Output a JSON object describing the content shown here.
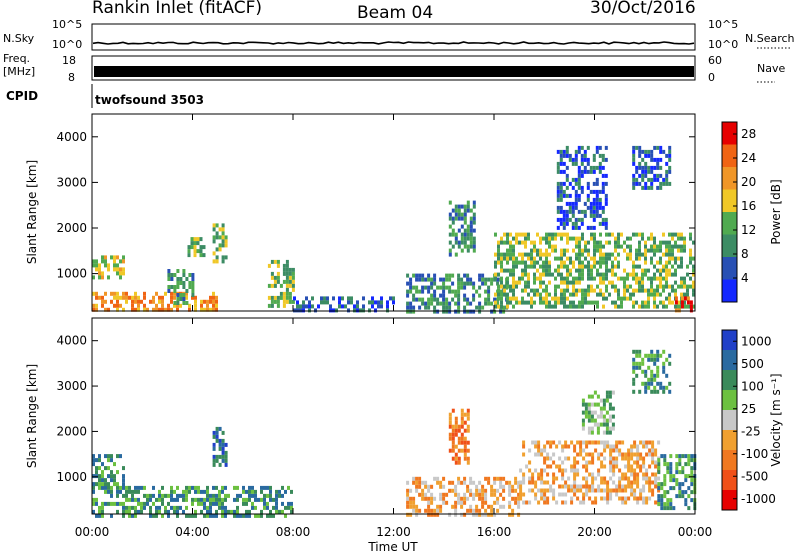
{
  "header": {
    "title": "Rankin Inlet (fitACF)",
    "beam": "Beam 04",
    "date": "30/Oct/2016"
  },
  "aux": {
    "nsky_label": "N.Sky",
    "nsky_ticks": [
      "10^5",
      "10^0"
    ],
    "nsearch_label": "N.Search",
    "freq_label_1": "Freq.",
    "freq_label_2": "[MHz]",
    "freq_ticks": [
      "18",
      "8"
    ],
    "nave_label": "Nave",
    "nave_ticks": [
      "60",
      "0"
    ],
    "cpid_label": "CPID",
    "cpid_value": "twofsound 3503"
  },
  "colors": {
    "power_scale": [
      "#1428ff",
      "#2850b4",
      "#3c8c64",
      "#50aa50",
      "#f0c828",
      "#f09628",
      "#f06414",
      "#e60000"
    ],
    "velocity_scale": [
      "#2040c8",
      "#2a6aa0",
      "#3a8a5a",
      "#6cc040",
      "#c8c8c8",
      "#f0a030",
      "#f07820",
      "#f05018",
      "#e60000"
    ]
  },
  "chart_data": [
    {
      "type": "heatmap",
      "name": "power",
      "ylabel": "Slant Range [km]",
      "y_ticks": [
        1000,
        2000,
        3000,
        4000
      ],
      "ylim": [
        180,
        4500
      ],
      "x_ticks": [
        "00:00",
        "04:00",
        "08:00",
        "12:00",
        "16:00",
        "20:00",
        "00:00"
      ],
      "xlim_hours": [
        0,
        24
      ],
      "colorbar": {
        "label": "Power [dB]",
        "ticks": [
          4,
          8,
          12,
          16,
          20,
          24,
          28
        ],
        "range": [
          0,
          30
        ]
      },
      "regions": [
        {
          "t": [
            0,
            5
          ],
          "r": [
            180,
            600
          ],
          "level": 24
        },
        {
          "t": [
            0,
            1.2
          ],
          "r": [
            900,
            1400
          ],
          "level": 20
        },
        {
          "t": [
            3.0,
            4.0
          ],
          "r": [
            350,
            1100
          ],
          "level": 12
        },
        {
          "t": [
            3.8,
            4.4
          ],
          "r": [
            1400,
            1800
          ],
          "level": 16
        },
        {
          "t": [
            4.8,
            5.3
          ],
          "r": [
            1300,
            2100
          ],
          "level": 14
        },
        {
          "t": [
            7.0,
            8.0
          ],
          "r": [
            300,
            1300
          ],
          "level": 16
        },
        {
          "t": [
            8.0,
            12.0
          ],
          "r": [
            200,
            500
          ],
          "level": 8
        },
        {
          "t": [
            12.5,
            16.5
          ],
          "r": [
            200,
            1000
          ],
          "level": 10
        },
        {
          "t": [
            14.2,
            15.2
          ],
          "r": [
            1400,
            2600
          ],
          "level": 12
        },
        {
          "t": [
            16.0,
            24.0
          ],
          "r": [
            300,
            1900
          ],
          "level": 16
        },
        {
          "t": [
            23.2,
            24.0
          ],
          "r": [
            200,
            500
          ],
          "level": 28
        },
        {
          "t": [
            18.5,
            20.5
          ],
          "r": [
            2000,
            3800
          ],
          "level": 8
        },
        {
          "t": [
            21.5,
            23.0
          ],
          "r": [
            2900,
            3800
          ],
          "level": 8
        }
      ]
    },
    {
      "type": "heatmap",
      "name": "velocity",
      "ylabel": "Slant Range [km]",
      "y_ticks": [
        1000,
        2000,
        3000,
        4000
      ],
      "ylim": [
        180,
        4500
      ],
      "x_ticks": [
        "00:00",
        "04:00",
        "08:00",
        "12:00",
        "16:00",
        "20:00",
        "00:00"
      ],
      "xaxis_title": "Time UT",
      "xlim_hours": [
        0,
        24
      ],
      "colorbar": {
        "label": "Velocity [m s⁻¹]",
        "ticks": [
          1000,
          500,
          100,
          25,
          -25,
          -100,
          -500,
          -1000
        ]
      },
      "regions": [
        {
          "t": [
            0,
            8
          ],
          "r": [
            180,
            800
          ],
          "value": 100
        },
        {
          "t": [
            0,
            1.2
          ],
          "r": [
            800,
            1500
          ],
          "value": 100
        },
        {
          "t": [
            4.8,
            5.3
          ],
          "r": [
            1300,
            2100
          ],
          "value": 500
        },
        {
          "t": [
            12.5,
            17.0
          ],
          "r": [
            200,
            1000
          ],
          "value": -100
        },
        {
          "t": [
            14.2,
            15.0
          ],
          "r": [
            1300,
            2500
          ],
          "value": -500
        },
        {
          "t": [
            17.0,
            22.5
          ],
          "r": [
            400,
            1800
          ],
          "value": -100
        },
        {
          "t": [
            22.5,
            24.0
          ],
          "r": [
            300,
            1500
          ],
          "value": 100
        },
        {
          "t": [
            19.5,
            20.8
          ],
          "r": [
            2000,
            2900
          ],
          "value": 25
        },
        {
          "t": [
            21.5,
            23.0
          ],
          "r": [
            2900,
            3800
          ],
          "value": 100
        }
      ]
    }
  ]
}
